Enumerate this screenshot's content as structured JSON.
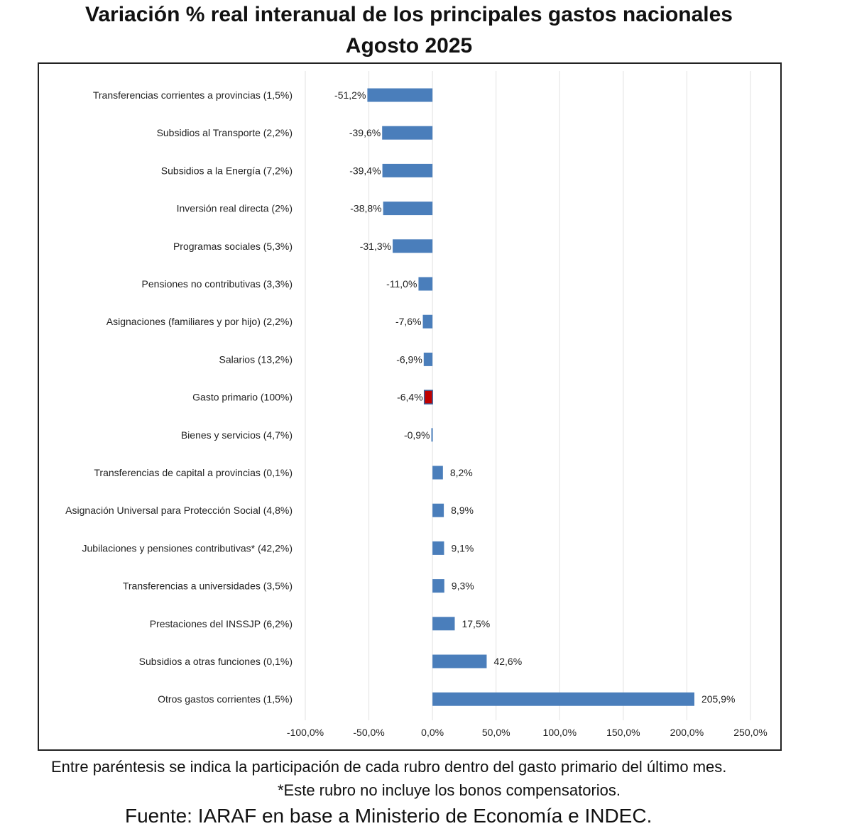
{
  "title_line1": "Variación % real interanual de los principales gastos nacionales",
  "title_line2": "Agosto 2025",
  "notes": {
    "participation": "Entre paréntesis se indica la participación de cada rubro dentro del gasto primario del último mes.",
    "asterisk": "*Este rubro no incluye los bonos compensatorios."
  },
  "source": "Fuente: IARAF en base a Ministerio de Economía e INDEC.",
  "colors": {
    "bar": "#4a7ebb",
    "highlight": "#c00000",
    "grid": "#e2e2e2"
  },
  "chart_data": {
    "type": "bar",
    "orientation": "horizontal",
    "xlim": [
      -100,
      250
    ],
    "xticks": [
      -100,
      -50,
      0,
      50,
      100,
      150,
      200,
      250
    ],
    "xtick_labels": [
      "-100,0%",
      "-50,0%",
      "0,0%",
      "50,0%",
      "100,0%",
      "150,0%",
      "200,0%",
      "250,0%"
    ],
    "grid": true,
    "categories": [
      "Transferencias corrientes a provincias (1,5%)",
      "Subsidios al Transporte (2,2%)",
      "Subsidios a la Energía (7,2%)",
      "Inversión real directa (2%)",
      "Programas sociales (5,3%)",
      "Pensiones no contributivas (3,3%)",
      "Asignaciones (familiares y por hijo) (2,2%)",
      "Salarios (13,2%)",
      "Gasto primario (100%)",
      "Bienes y servicios (4,7%)",
      "Transferencias de capital a provincias (0,1%)",
      "Asignación Universal para Protección Social (4,8%)",
      "Jubilaciones y pensiones contributivas* (42,2%)",
      "Transferencias a universidades (3,5%)",
      "Prestaciones del INSSJP (6,2%)",
      "Subsidios a otras funciones (0,1%)",
      "Otros gastos corrientes (1,5%)"
    ],
    "values": [
      -51.2,
      -39.6,
      -39.4,
      -38.8,
      -31.3,
      -11.0,
      -7.6,
      -6.9,
      -6.4,
      -0.9,
      8.2,
      8.9,
      9.1,
      9.3,
      17.5,
      42.6,
      205.9
    ],
    "value_labels": [
      "-51,2%",
      "-39,6%",
      "-39,4%",
      "-38,8%",
      "-31,3%",
      "-11,0%",
      "-7,6%",
      "-6,9%",
      "-6,4%",
      "-0,9%",
      "8,2%",
      "8,9%",
      "9,1%",
      "9,3%",
      "17,5%",
      "42,6%",
      "205,9%"
    ],
    "highlight_index": 8
  }
}
